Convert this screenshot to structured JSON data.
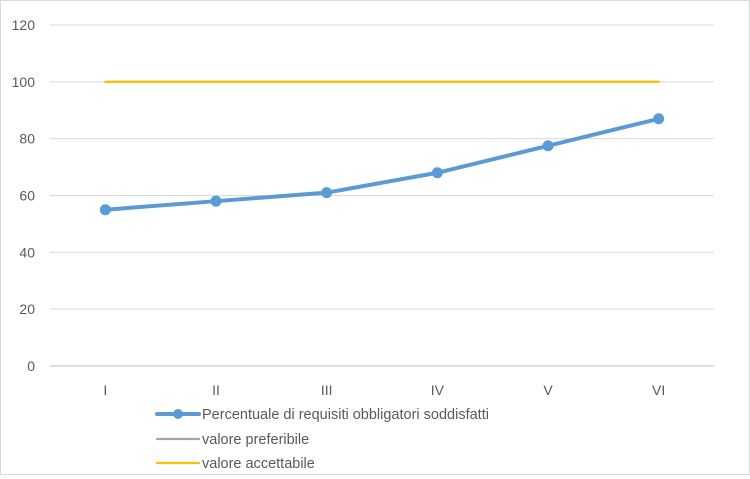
{
  "chart_data": {
    "type": "line",
    "categories": [
      "I",
      "II",
      "III",
      "IV",
      "V",
      "VI"
    ],
    "ylim": [
      0,
      120
    ],
    "yticks": [
      0,
      20,
      40,
      60,
      80,
      100,
      120
    ],
    "grid": true,
    "legend_position": "bottom",
    "series": [
      {
        "name": "Percentuale di requisiti obbligatori soddisfatti",
        "values": [
          55,
          58,
          61,
          68,
          77.5,
          87
        ],
        "color": "#5b9bd5",
        "markers": true
      },
      {
        "name": "valore preferibile",
        "values": [
          100,
          100,
          100,
          100,
          100,
          100
        ],
        "color": "#a5a5a5",
        "markers": false
      },
      {
        "name": "valore accettabile",
        "values": [
          100,
          100,
          100,
          100,
          100,
          100
        ],
        "color": "#ffc000",
        "markers": false
      }
    ]
  }
}
